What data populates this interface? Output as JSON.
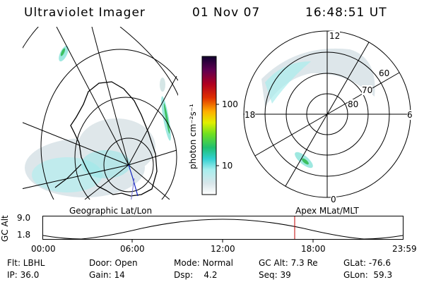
{
  "header": {
    "instrument": "Ultraviolet Imager",
    "date": "01 Nov 07",
    "time": "16:48:51 UT"
  },
  "left_map": {
    "label": "Geographic Lat/Lon"
  },
  "right_map": {
    "label": "Apex  MLat/MLT",
    "mlt_labels": [
      "12",
      "18",
      "6",
      "0"
    ],
    "lat_labels": [
      "60",
      "70",
      "80"
    ]
  },
  "colorbar": {
    "label": "photon cm⁻²s⁻¹",
    "ticks": [
      "100",
      "10"
    ]
  },
  "timeline": {
    "axis_title": "GC Alt",
    "y_ticks": [
      "9.0",
      "1.8"
    ],
    "x_ticks": [
      "00:00",
      "06:00",
      "12:00",
      "18:00",
      "23:59"
    ]
  },
  "info": {
    "filter": "Flt: LBHL",
    "ip": "IP: 36.0",
    "door": "Door: Open",
    "gain": "Gain: 14",
    "mode": "Mode: Normal",
    "dsp": "Dsp:    4.2",
    "gc_alt": "GC Alt: 7.3 Re",
    "seq": "Seq: 39",
    "glat": "GLat: -76.6",
    "glon": "GLon:  59.3"
  },
  "colors": {
    "aurora_light": "#d8e4e8",
    "aurora_cyan": "#8fe6e6",
    "aurora_green": "#3cc060",
    "marker_red": "#c00000"
  }
}
